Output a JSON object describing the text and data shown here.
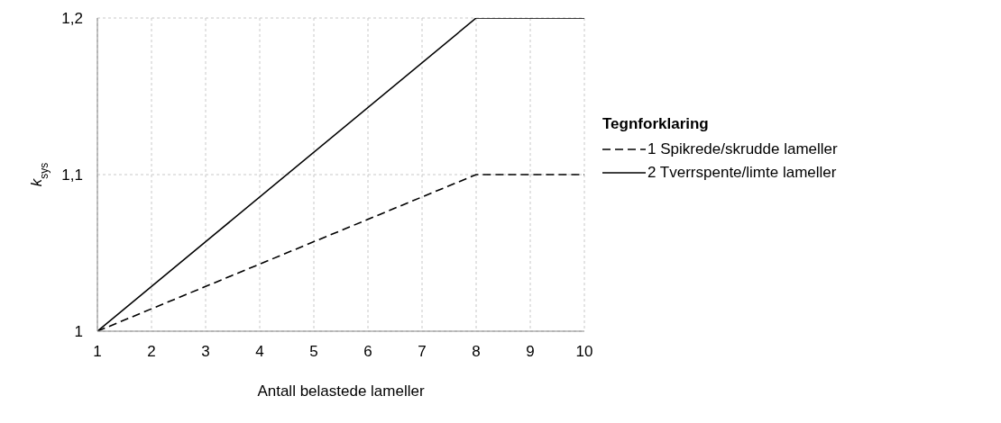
{
  "chart_data": {
    "type": "line",
    "xlabel": "Antall belastede lameller",
    "ylabel": "k$_{sys}$",
    "legend_title": "Tegnforklaring",
    "xlim": [
      1,
      10
    ],
    "xticks": [
      1,
      2,
      3,
      4,
      5,
      6,
      7,
      8,
      9,
      10
    ],
    "ylim": [
      1,
      1.2
    ],
    "yticks": [
      {
        "value": 1,
        "label": "1"
      },
      {
        "value": 1.1,
        "label": "1,1"
      },
      {
        "value": 1.2,
        "label": "1,2"
      }
    ],
    "grid": true,
    "legend": "right",
    "marker": "none",
    "series": [
      {
        "name": "1 Spikrede/skrudde lameller",
        "color": "#000000",
        "line_style": "dashed",
        "x": [
          1,
          8,
          10
        ],
        "values": [
          1,
          1.1,
          1.1
        ]
      },
      {
        "name": "2 Tverrspente/limte lameller",
        "color": "#000000",
        "line_style": "solid",
        "x": [
          1,
          8,
          10
        ],
        "values": [
          1,
          1.2,
          1.2
        ]
      }
    ]
  }
}
